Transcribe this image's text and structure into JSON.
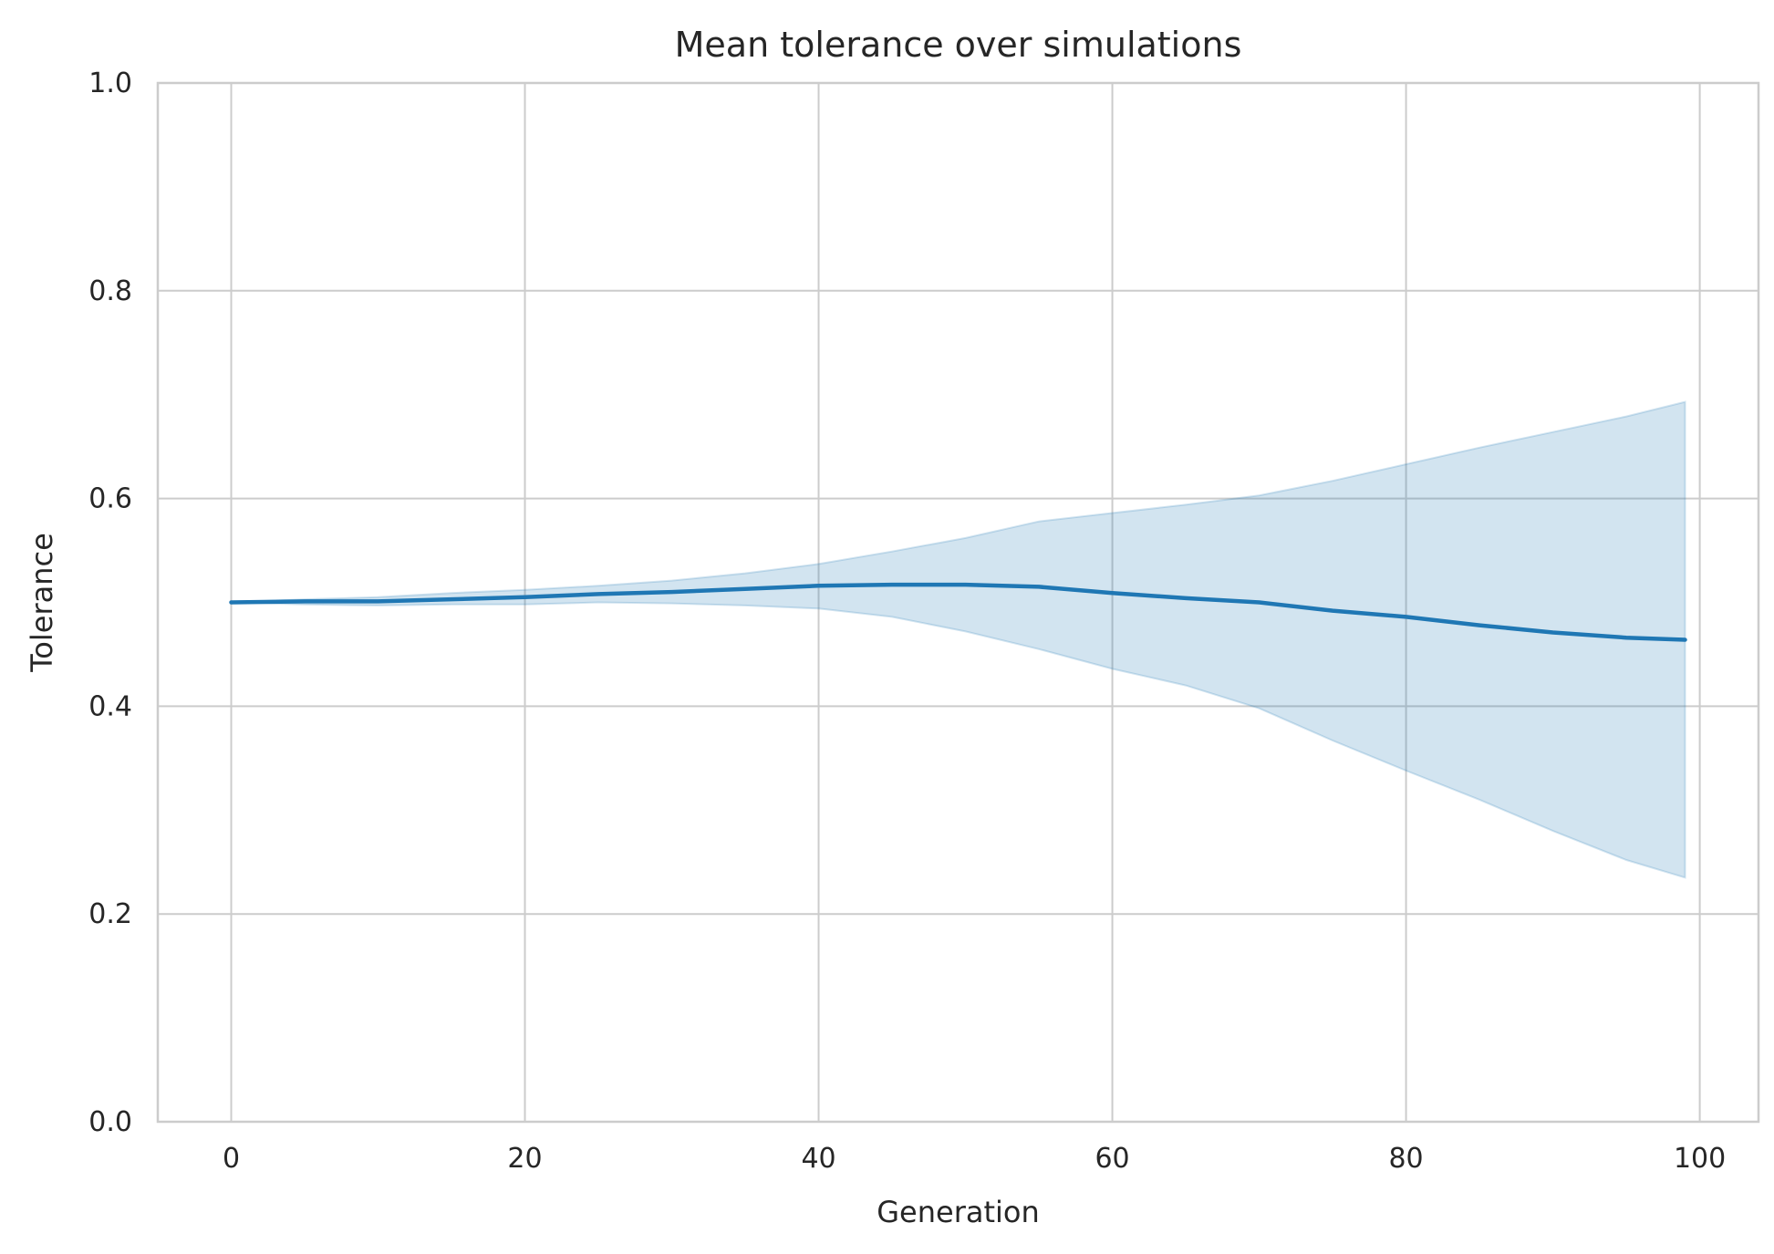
{
  "chart_data": {
    "type": "line",
    "title": "Mean tolerance over simulations",
    "xlabel": "Generation",
    "ylabel": "Tolerance",
    "xlim": [
      -5,
      104
    ],
    "ylim": [
      0.0,
      1.0
    ],
    "xticks": [
      0,
      20,
      40,
      60,
      80,
      100
    ],
    "yticks": [
      0.0,
      0.2,
      0.4,
      0.6,
      0.8,
      1.0
    ],
    "xtick_labels": [
      "0",
      "20",
      "40",
      "60",
      "80",
      "100"
    ],
    "ytick_labels": [
      "0.0",
      "0.2",
      "0.4",
      "0.6",
      "0.8",
      "1.0"
    ],
    "grid": true,
    "colors": {
      "line": "#1f77b4",
      "band": "#1f77b4",
      "grid": "#cccccc",
      "text": "#262626"
    },
    "series": [
      {
        "x": [
          0,
          5,
          10,
          15,
          20,
          25,
          30,
          35,
          40,
          45,
          50,
          55,
          60,
          65,
          70,
          75,
          80,
          85,
          90,
          95,
          99
        ],
        "mean": [
          0.5,
          0.501,
          0.501,
          0.503,
          0.505,
          0.508,
          0.51,
          0.513,
          0.516,
          0.517,
          0.517,
          0.515,
          0.509,
          0.504,
          0.5,
          0.492,
          0.486,
          0.478,
          0.471,
          0.466,
          0.464
        ],
        "lower": [
          0.5,
          0.498,
          0.497,
          0.498,
          0.498,
          0.5,
          0.499,
          0.497,
          0.494,
          0.486,
          0.472,
          0.455,
          0.436,
          0.42,
          0.398,
          0.367,
          0.338,
          0.31,
          0.28,
          0.252,
          0.235
        ],
        "upper": [
          0.5,
          0.503,
          0.505,
          0.509,
          0.512,
          0.516,
          0.521,
          0.528,
          0.537,
          0.549,
          0.562,
          0.578,
          0.586,
          0.594,
          0.603,
          0.617,
          0.633,
          0.649,
          0.664,
          0.679,
          0.693
        ]
      }
    ]
  }
}
